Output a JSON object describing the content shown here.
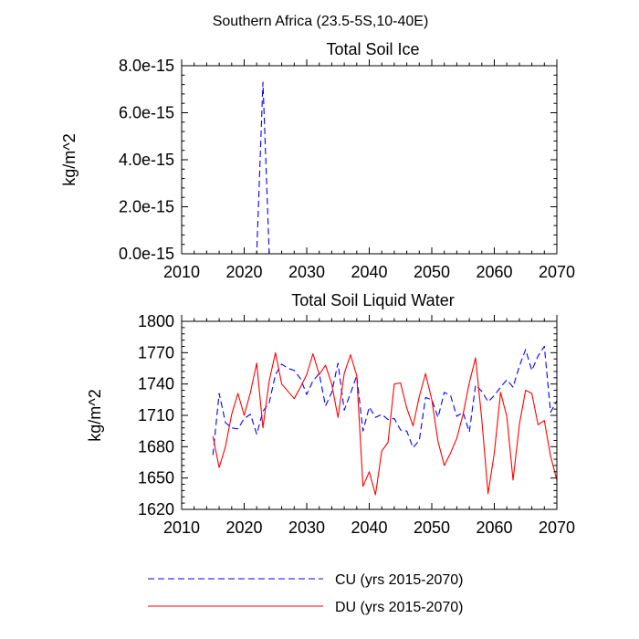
{
  "suptitle": "Southern Africa (23.5-5S,10-40E)",
  "colors": {
    "cu": "#0000ff",
    "du": "#ff0000",
    "axis": "#000000"
  },
  "chart_data": [
    {
      "type": "line",
      "title": "Total Soil Ice",
      "ylabel": "kg/m^2",
      "xlabel": "",
      "xlim": [
        2010,
        2070
      ],
      "ylim": [
        0,
        8e-15
      ],
      "xticks": [
        2010,
        2020,
        2030,
        2040,
        2050,
        2060,
        2070
      ],
      "xtick_labels": [
        "2010",
        "2020",
        "2030",
        "2040",
        "2050",
        "2060",
        "2070"
      ],
      "yticks": [
        0,
        2e-15,
        4e-15,
        6e-15,
        8e-15
      ],
      "ytick_labels": [
        "0.0e-15",
        "2.0e-15",
        "4.0e-15",
        "6.0e-15",
        "8.0e-15"
      ],
      "grid": false,
      "series": [
        {
          "key": "cu",
          "x": [
            2015,
            2016,
            2017,
            2018,
            2019,
            2020,
            2021,
            2022,
            2023,
            2024,
            2025,
            2026,
            2027,
            2028,
            2029,
            2030,
            2031,
            2032,
            2033,
            2034,
            2035,
            2036,
            2037,
            2038,
            2039,
            2040,
            2041,
            2042,
            2043,
            2044,
            2045,
            2046,
            2047,
            2048,
            2049,
            2050,
            2051,
            2052,
            2053,
            2054,
            2055,
            2056,
            2057,
            2058,
            2059,
            2060,
            2061,
            2062,
            2063,
            2064,
            2065,
            2066,
            2067,
            2068,
            2069,
            2070
          ],
          "y": [
            0,
            0,
            0,
            0,
            0,
            0,
            0,
            0,
            7.3e-15,
            0,
            0,
            0,
            0,
            0,
            0,
            0,
            0,
            0,
            0,
            0,
            0,
            0,
            0,
            0,
            0,
            0,
            0,
            0,
            0,
            0,
            0,
            0,
            0,
            0,
            0,
            0,
            0,
            0,
            0,
            0,
            0,
            0,
            0,
            0,
            0,
            0,
            0,
            0,
            0,
            0,
            0,
            0,
            0,
            0,
            0,
            0
          ]
        },
        {
          "key": "du",
          "x": [
            2015,
            2016,
            2017,
            2018,
            2019,
            2020,
            2021,
            2022,
            2023,
            2024,
            2025,
            2026,
            2027,
            2028,
            2029,
            2030,
            2031,
            2032,
            2033,
            2034,
            2035,
            2036,
            2037,
            2038,
            2039,
            2040,
            2041,
            2042,
            2043,
            2044,
            2045,
            2046,
            2047,
            2048,
            2049,
            2050,
            2051,
            2052,
            2053,
            2054,
            2055,
            2056,
            2057,
            2058,
            2059,
            2060,
            2061,
            2062,
            2063,
            2064,
            2065,
            2066,
            2067,
            2068,
            2069,
            2070
          ],
          "y": [
            0,
            0,
            0,
            0,
            0,
            0,
            0,
            0,
            0,
            0,
            0,
            0,
            0,
            0,
            0,
            0,
            0,
            0,
            0,
            0,
            0,
            0,
            0,
            0,
            0,
            0,
            0,
            0,
            0,
            0,
            0,
            0,
            0,
            0,
            0,
            0,
            0,
            0,
            0,
            0,
            0,
            0,
            0,
            0,
            0,
            0,
            0,
            0,
            0,
            0,
            0,
            0,
            0,
            0,
            0,
            0
          ]
        }
      ]
    },
    {
      "type": "line",
      "title": "Total Soil Liquid Water",
      "ylabel": "kg/m^2",
      "xlabel": "",
      "xlim": [
        2010,
        2070
      ],
      "ylim": [
        1620,
        1800
      ],
      "xticks": [
        2010,
        2020,
        2030,
        2040,
        2050,
        2060,
        2070
      ],
      "xtick_labels": [
        "2010",
        "2020",
        "2030",
        "2040",
        "2050",
        "2060",
        "2070"
      ],
      "yticks": [
        1620,
        1650,
        1680,
        1710,
        1740,
        1770,
        1800
      ],
      "ytick_labels": [
        "1620",
        "1650",
        "1680",
        "1710",
        "1740",
        "1770",
        "1800"
      ],
      "grid": false,
      "series": [
        {
          "key": "cu",
          "x": [
            2015,
            2016,
            2017,
            2018,
            2019,
            2020,
            2021,
            2022,
            2023,
            2024,
            2025,
            2026,
            2027,
            2028,
            2029,
            2030,
            2031,
            2032,
            2033,
            2034,
            2035,
            2036,
            2037,
            2038,
            2039,
            2040,
            2041,
            2042,
            2043,
            2044,
            2045,
            2046,
            2047,
            2048,
            2049,
            2050,
            2051,
            2052,
            2053,
            2054,
            2055,
            2056,
            2057,
            2058,
            2059,
            2060,
            2061,
            2062,
            2063,
            2064,
            2065,
            2066,
            2067,
            2068,
            2069,
            2070
          ],
          "y": [
            1672,
            1731,
            1703,
            1698,
            1697,
            1707,
            1711,
            1692,
            1714,
            1722,
            1749,
            1759,
            1755,
            1753,
            1745,
            1730,
            1743,
            1750,
            1719,
            1732,
            1760,
            1715,
            1731,
            1748,
            1695,
            1718,
            1708,
            1711,
            1706,
            1707,
            1696,
            1695,
            1679,
            1686,
            1727,
            1725,
            1708,
            1732,
            1729,
            1709,
            1713,
            1694,
            1739,
            1733,
            1723,
            1729,
            1737,
            1744,
            1737,
            1757,
            1773,
            1753,
            1767,
            1776,
            1713,
            1724
          ]
        },
        {
          "key": "du",
          "x": [
            2015,
            2016,
            2017,
            2018,
            2019,
            2020,
            2021,
            2022,
            2023,
            2024,
            2025,
            2026,
            2027,
            2028,
            2029,
            2030,
            2031,
            2032,
            2033,
            2034,
            2035,
            2036,
            2037,
            2038,
            2039,
            2040,
            2041,
            2042,
            2043,
            2044,
            2045,
            2046,
            2047,
            2048,
            2049,
            2050,
            2051,
            2052,
            2053,
            2054,
            2055,
            2056,
            2057,
            2058,
            2059,
            2060,
            2061,
            2062,
            2063,
            2064,
            2065,
            2066,
            2067,
            2068,
            2069,
            2070
          ],
          "y": [
            1690,
            1660,
            1680,
            1711,
            1731,
            1710,
            1732,
            1760,
            1698,
            1743,
            1770,
            1740,
            1733,
            1726,
            1737,
            1749,
            1769,
            1749,
            1758,
            1740,
            1708,
            1750,
            1768,
            1748,
            1642,
            1656,
            1634,
            1676,
            1684,
            1740,
            1741,
            1717,
            1700,
            1728,
            1750,
            1725,
            1685,
            1662,
            1674,
            1688,
            1711,
            1741,
            1765,
            1706,
            1635,
            1674,
            1732,
            1709,
            1648,
            1701,
            1734,
            1731,
            1701,
            1705,
            1671,
            1648
          ]
        }
      ]
    }
  ],
  "legend": [
    {
      "key": "cu",
      "label": "CU (yrs 2015-2070)",
      "dash": "dashed"
    },
    {
      "key": "du",
      "label": "DU (yrs 2015-2070)",
      "dash": "solid"
    }
  ]
}
